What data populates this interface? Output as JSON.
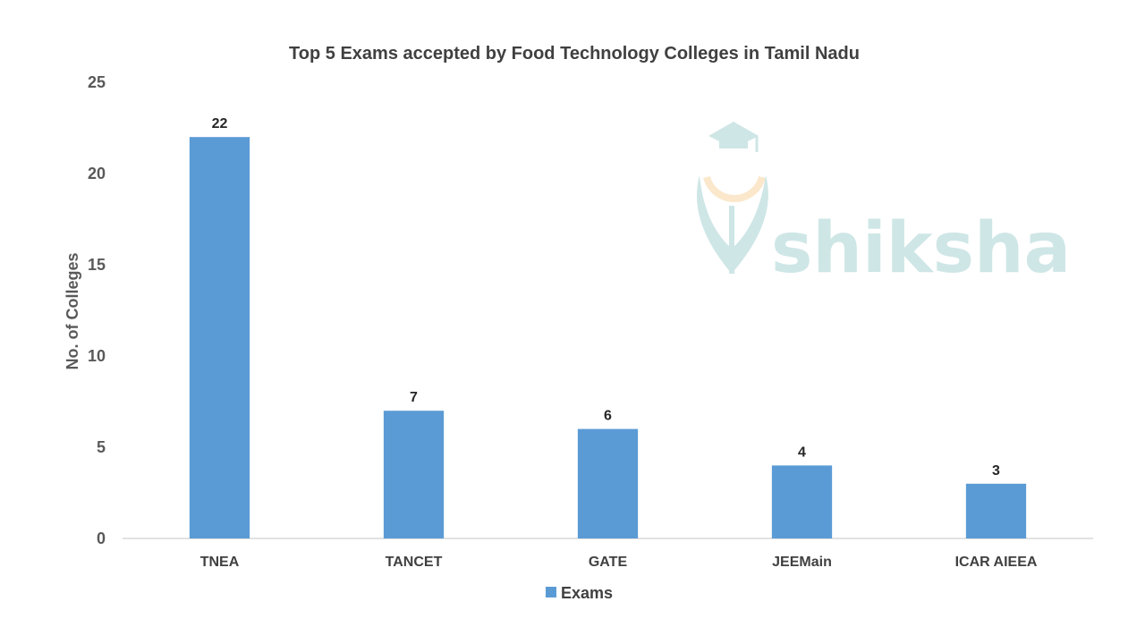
{
  "chart_data": {
    "type": "bar",
    "title": "Top 5 Exams accepted by Food Technology Colleges in Tamil Nadu",
    "xlabel": "",
    "ylabel": "No. of Colleges",
    "categories": [
      "TNEA",
      "TANCET",
      "GATE",
      "JEEMain",
      "ICAR AIEEA"
    ],
    "series": [
      {
        "name": "Exams",
        "values": [
          22,
          7,
          6,
          4,
          3
        ],
        "color": "#5b9bd5"
      }
    ],
    "ylim": [
      0,
      25
    ],
    "yticks": [
      0,
      5,
      10,
      15,
      20,
      25
    ],
    "grid": false,
    "legend": "bottom",
    "data_labels": true
  },
  "watermark": {
    "text": "shiksha",
    "icon": "shiksha-logo-icon",
    "color": "#cfe6e6",
    "accent": "#fbe8cc"
  }
}
